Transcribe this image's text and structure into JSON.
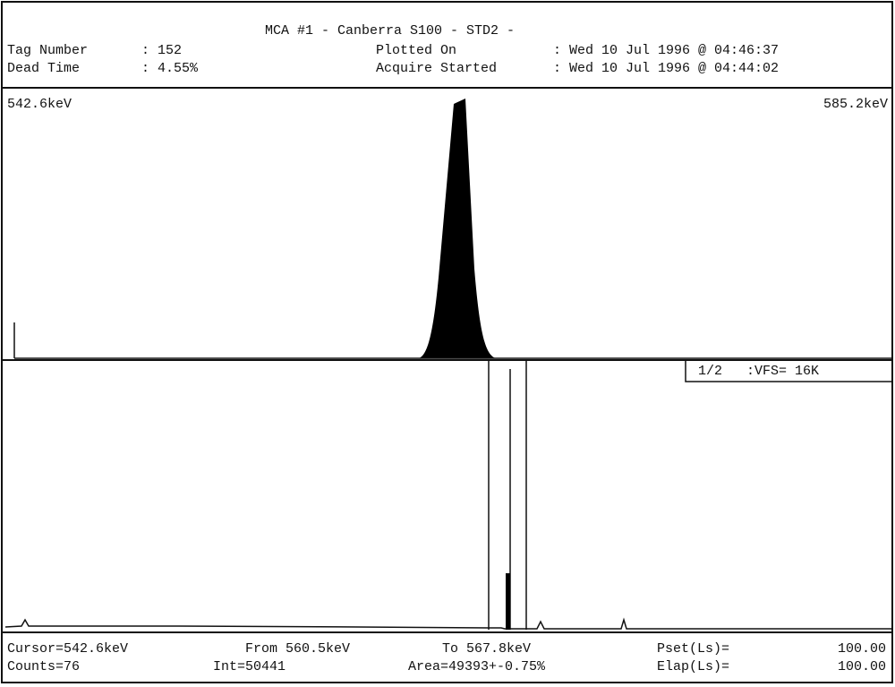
{
  "header": {
    "title": "MCA #1 - Canberra S100 - STD2 -",
    "tag_label": "Tag Number",
    "tag_value": ": 152",
    "dead_label": "Dead Time",
    "dead_value": ": 4.55%",
    "plotted_label": "Plotted On",
    "plotted_value": ": Wed 10 Jul 1996 @ 04:46:37",
    "acquire_label": "Acquire Started",
    "acquire_value": ": Wed 10 Jul 1996 @ 04:44:02"
  },
  "upper_panel": {
    "left_energy": "542.6keV",
    "right_energy": "585.2keV"
  },
  "lower_panel": {
    "scale": "1/2   :VFS= 16K"
  },
  "footer": {
    "cursor": "Cursor=542.6keV",
    "from": "From 560.5keV",
    "to": "To 567.8keV",
    "pset_label": "Pset(Ls)=",
    "pset_value": "100.00",
    "counts": "Counts=76",
    "int": "Int=50441",
    "area": "Area=49393+-0.75%",
    "elap_label": "Elap(Ls)=",
    "elap_value": "100.00"
  }
}
